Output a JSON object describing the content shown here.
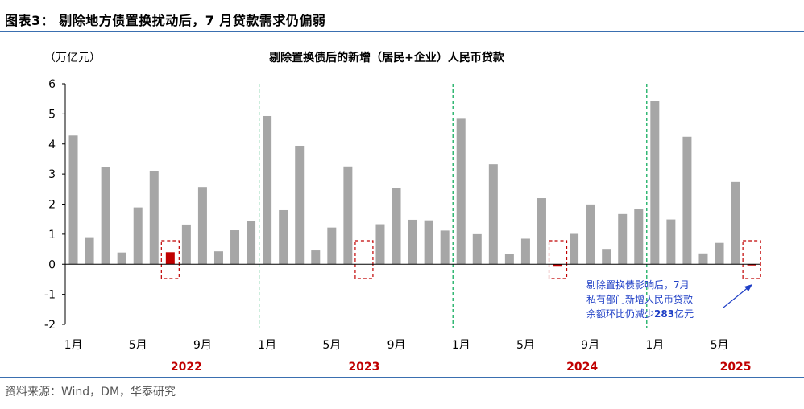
{
  "figure_title": "图表3： 剔除地方债置换扰动后，7 月贷款需求仍偏弱",
  "source": "资料来源：Wind，DM，华泰研究",
  "colors": {
    "bar": "#a6a6a6",
    "highlight": "#c00000",
    "year": "#c00000",
    "dash_box": "#c00000",
    "divider": "#00a651",
    "annotation": "#1f3fc6",
    "rule": "#3a6fb0"
  },
  "chart_data": {
    "type": "bar",
    "title": "剔除置换债后的新增（居民+企业）人民币贷款",
    "unit_label": "（万亿元）",
    "ylim": [
      -2,
      6
    ],
    "yticks": [
      "6",
      "5",
      "4",
      "3",
      "2",
      "1",
      "0",
      "-1",
      "-2"
    ],
    "categories": [
      "2022-01",
      "2022-02",
      "2022-03",
      "2022-04",
      "2022-05",
      "2022-06",
      "2022-07",
      "2022-08",
      "2022-09",
      "2022-10",
      "2022-11",
      "2022-12",
      "2023-01",
      "2023-02",
      "2023-03",
      "2023-04",
      "2023-05",
      "2023-06",
      "2023-07",
      "2023-08",
      "2023-09",
      "2023-10",
      "2023-11",
      "2023-12",
      "2024-01",
      "2024-02",
      "2024-03",
      "2024-04",
      "2024-05",
      "2024-06",
      "2024-07",
      "2024-08",
      "2024-09",
      "2024-10",
      "2024-11",
      "2024-12",
      "2025-01",
      "2025-02",
      "2025-03",
      "2025-04",
      "2025-05",
      "2025-06",
      "2025-07"
    ],
    "values": [
      4.28,
      0.9,
      3.23,
      0.39,
      1.89,
      3.09,
      0.4,
      1.32,
      2.57,
      0.43,
      1.13,
      1.43,
      4.93,
      1.8,
      3.94,
      0.46,
      1.22,
      3.25,
      0.0,
      1.33,
      2.54,
      1.48,
      1.46,
      1.12,
      4.84,
      1.0,
      3.32,
      0.33,
      0.85,
      2.2,
      -0.08,
      1.01,
      1.99,
      0.51,
      1.67,
      1.84,
      5.42,
      1.49,
      4.24,
      0.36,
      0.71,
      2.74,
      -0.03
    ],
    "highlight_indices": [
      6,
      18,
      30,
      42
    ],
    "xtick_labels": [
      {
        "index": 0,
        "label": "1月"
      },
      {
        "index": 4,
        "label": "5月"
      },
      {
        "index": 8,
        "label": "9月"
      },
      {
        "index": 12,
        "label": "1月"
      },
      {
        "index": 16,
        "label": "5月"
      },
      {
        "index": 20,
        "label": "9月"
      },
      {
        "index": 24,
        "label": "1月"
      },
      {
        "index": 28,
        "label": "5月"
      },
      {
        "index": 32,
        "label": "9月"
      },
      {
        "index": 36,
        "label": "1月"
      },
      {
        "index": 40,
        "label": "5月"
      }
    ],
    "years": [
      {
        "center_index": 7,
        "label": "2022"
      },
      {
        "center_index": 18,
        "label": "2023"
      },
      {
        "center_index": 31.5,
        "label": "2024"
      },
      {
        "center_index": 41,
        "label": "2025"
      }
    ],
    "year_dividers_after": [
      11,
      23,
      35
    ],
    "annotation": {
      "lines": [
        "剔除置换债影响后，7月",
        "私有部门新增人民币贷款"
      ],
      "line3_prefix": "余额环比仍减少",
      "line3_value": "283",
      "line3_suffix": "亿元"
    }
  }
}
